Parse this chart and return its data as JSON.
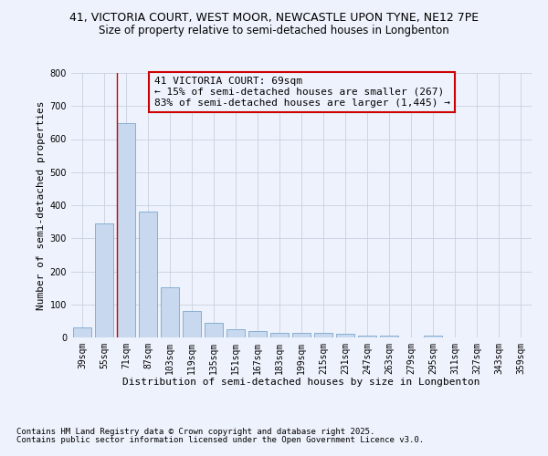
{
  "title_line1": "41, VICTORIA COURT, WEST MOOR, NEWCASTLE UPON TYNE, NE12 7PE",
  "title_line2": "Size of property relative to semi-detached houses in Longbenton",
  "categories": [
    "39sqm",
    "55sqm",
    "71sqm",
    "87sqm",
    "103sqm",
    "119sqm",
    "135sqm",
    "151sqm",
    "167sqm",
    "183sqm",
    "199sqm",
    "215sqm",
    "231sqm",
    "247sqm",
    "263sqm",
    "279sqm",
    "295sqm",
    "311sqm",
    "327sqm",
    "343sqm",
    "359sqm"
  ],
  "values": [
    30,
    345,
    648,
    380,
    152,
    80,
    45,
    25,
    18,
    15,
    13,
    15,
    12,
    5,
    5,
    0,
    5,
    0,
    0,
    0,
    0
  ],
  "bar_color": "#c8d8ee",
  "bar_edge_color": "#7ba7cc",
  "grid_color": "#c8d0e0",
  "bg_color": "#eef2fc",
  "vline_x": 2,
  "vline_color": "#cc0000",
  "annotation_title": "41 VICTORIA COURT: 69sqm",
  "annotation_line1": "← 15% of semi-detached houses are smaller (267)",
  "annotation_line2": "83% of semi-detached houses are larger (1,445) →",
  "annotation_box_color": "#cc0000",
  "xlabel": "Distribution of semi-detached houses by size in Longbenton",
  "ylabel": "Number of semi-detached properties",
  "ylim": [
    0,
    800
  ],
  "yticks": [
    0,
    100,
    200,
    300,
    400,
    500,
    600,
    700,
    800
  ],
  "footnote1": "Contains HM Land Registry data © Crown copyright and database right 2025.",
  "footnote2": "Contains public sector information licensed under the Open Government Licence v3.0.",
  "title_fontsize": 9,
  "subtitle_fontsize": 8.5,
  "axis_label_fontsize": 8,
  "tick_fontsize": 7,
  "annotation_fontsize": 8,
  "footnote_fontsize": 6.5
}
